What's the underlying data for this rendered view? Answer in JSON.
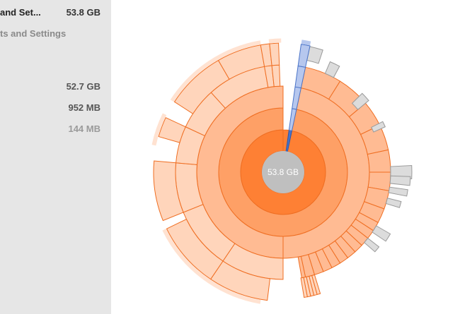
{
  "sidebar": {
    "items": [
      {
        "name": "and Set...",
        "size": "53.8 GB"
      },
      {
        "name": "ts and Settings",
        "size": ""
      },
      {
        "name": "",
        "size": "52.7 GB"
      },
      {
        "name": "",
        "size": "952 MB"
      },
      {
        "name": "",
        "size": "144 MB"
      }
    ]
  },
  "chart": {
    "center_label": "53.8 GB"
  },
  "colors": {
    "ring0": "#fe8034",
    "ring1": "#fea066",
    "ring2": "#ffbb93",
    "ring3": "#ffd5bb",
    "ring4": "#ffe2d1",
    "stroke": "#ef6e22",
    "center": "#bfbfbf",
    "selected": "#4a74c8",
    "selected_light": "#b6c7ee",
    "gray": "#dcdcdc",
    "sidebar_bg": "#e6e6e6"
  }
}
